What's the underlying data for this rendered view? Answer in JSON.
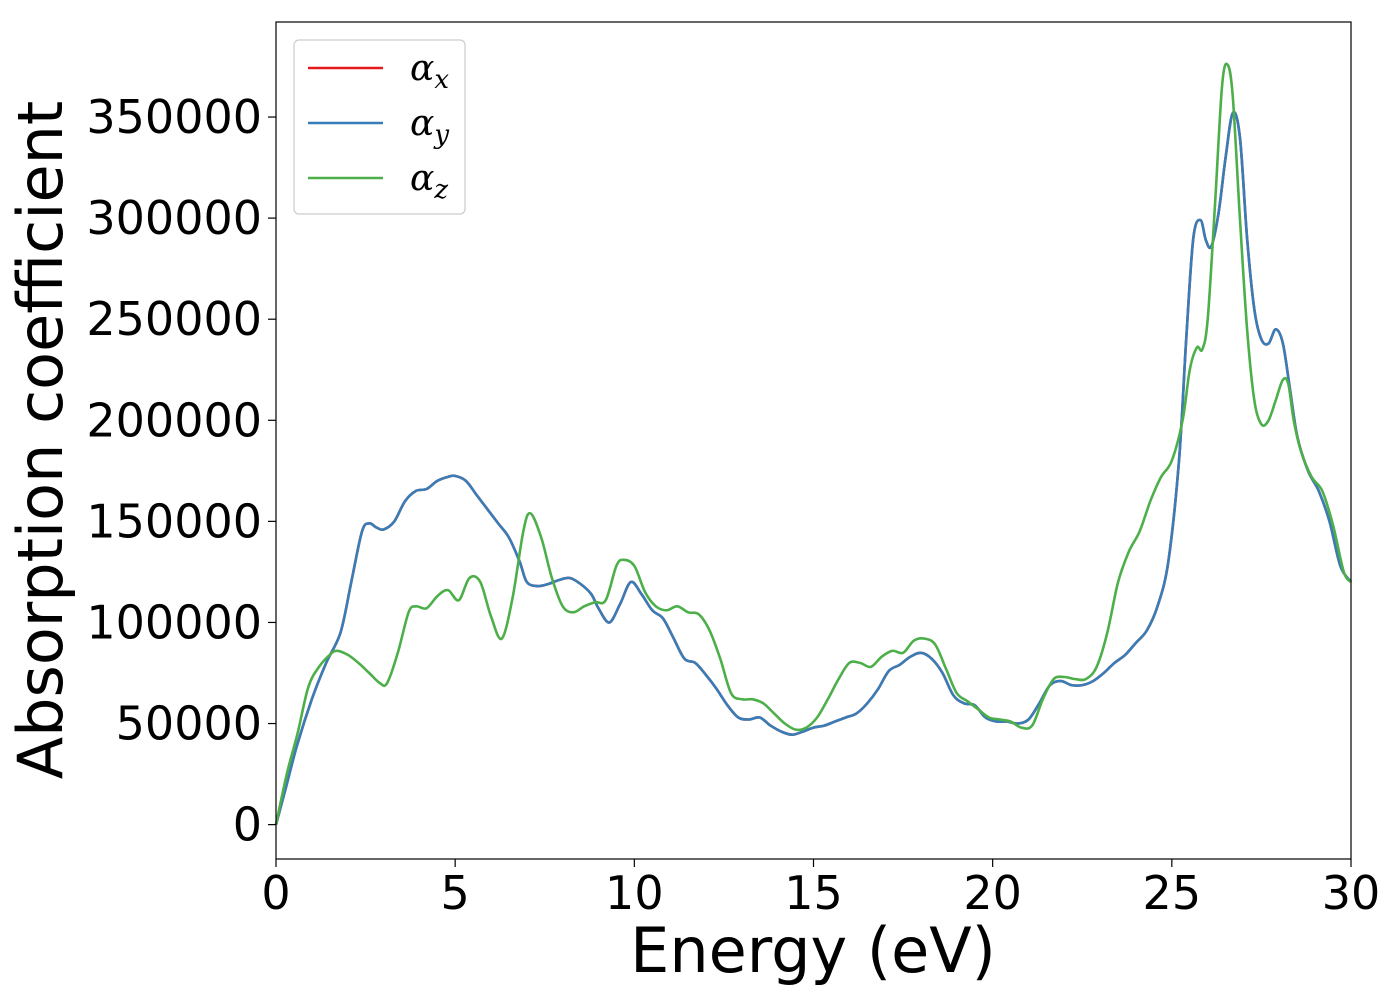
{
  "chart_data": {
    "type": "line",
    "title": "",
    "xlabel": "Energy (eV)",
    "ylabel": "Absorption coefficient",
    "xlim": [
      0,
      30
    ],
    "ylim": [
      -17000,
      397000
    ],
    "xticks": [
      0,
      5,
      10,
      15,
      20,
      25,
      30
    ],
    "yticks": [
      0,
      50000,
      100000,
      150000,
      200000,
      250000,
      300000,
      350000
    ],
    "grid": false,
    "legend_position": "top-left",
    "series": [
      {
        "name": "αx",
        "base": "α",
        "sub": "x",
        "color": "#e41a1c",
        "x": [
          0,
          0.3,
          0.6,
          1.0,
          1.4,
          1.8,
          2.1,
          2.4,
          2.6,
          2.8,
          3.0,
          3.3,
          3.6,
          3.9,
          4.2,
          4.5,
          4.8,
          5.0,
          5.3,
          5.6,
          5.9,
          6.2,
          6.5,
          6.8,
          7.0,
          7.3,
          7.6,
          7.9,
          8.2,
          8.5,
          8.8,
          9.0,
          9.3,
          9.6,
          9.9,
          10.2,
          10.5,
          10.8,
          11.1,
          11.4,
          11.7,
          12.0,
          12.3,
          12.6,
          12.9,
          13.2,
          13.5,
          13.8,
          14.1,
          14.4,
          14.7,
          15.0,
          15.3,
          15.6,
          15.9,
          16.2,
          16.5,
          16.8,
          17.1,
          17.4,
          17.7,
          18.0,
          18.3,
          18.6,
          18.9,
          19.2,
          19.5,
          19.8,
          20.1,
          20.4,
          20.7,
          21.0,
          21.3,
          21.6,
          21.9,
          22.2,
          22.5,
          22.8,
          23.1,
          23.4,
          23.7,
          24.0,
          24.3,
          24.6,
          24.9,
          25.2,
          25.4,
          25.6,
          25.8,
          25.95,
          26.1,
          26.3,
          26.5,
          26.7,
          26.9,
          27.1,
          27.3,
          27.5,
          27.7,
          27.9,
          28.1,
          28.3,
          28.5,
          28.8,
          29.1,
          29.4,
          29.7,
          30.0
        ],
        "y": [
          0,
          20000,
          40000,
          62000,
          80000,
          95000,
          120000,
          145000,
          149000,
          147000,
          146000,
          150000,
          160000,
          165000,
          166000,
          170000,
          172000,
          172500,
          170000,
          163000,
          156000,
          149000,
          142000,
          130000,
          120000,
          118000,
          119000,
          121000,
          122000,
          119000,
          114000,
          107000,
          100000,
          109000,
          120000,
          114000,
          106000,
          102000,
          92000,
          82000,
          80000,
          74000,
          67000,
          59000,
          53000,
          52000,
          53000,
          49000,
          46000,
          44500,
          46000,
          48000,
          49000,
          51000,
          53000,
          55000,
          60000,
          67000,
          76000,
          79000,
          83000,
          85000,
          82000,
          75000,
          64000,
          60000,
          59000,
          53000,
          51000,
          51000,
          50000,
          52000,
          60000,
          69000,
          71000,
          69000,
          69000,
          71000,
          75000,
          80000,
          84000,
          90000,
          96000,
          108000,
          130000,
          180000,
          240000,
          290000,
          299000,
          289000,
          286000,
          302000,
          330000,
          352000,
          340000,
          290000,
          255000,
          240000,
          238000,
          245000,
          238000,
          215000,
          192000,
          175000,
          165000,
          150000,
          128000,
          120000
        ]
      },
      {
        "name": "αy",
        "base": "α",
        "sub": "y",
        "color": "#377eb8",
        "x": [
          0,
          0.3,
          0.6,
          1.0,
          1.4,
          1.8,
          2.1,
          2.4,
          2.6,
          2.8,
          3.0,
          3.3,
          3.6,
          3.9,
          4.2,
          4.5,
          4.8,
          5.0,
          5.3,
          5.6,
          5.9,
          6.2,
          6.5,
          6.8,
          7.0,
          7.3,
          7.6,
          7.9,
          8.2,
          8.5,
          8.8,
          9.0,
          9.3,
          9.6,
          9.9,
          10.2,
          10.5,
          10.8,
          11.1,
          11.4,
          11.7,
          12.0,
          12.3,
          12.6,
          12.9,
          13.2,
          13.5,
          13.8,
          14.1,
          14.4,
          14.7,
          15.0,
          15.3,
          15.6,
          15.9,
          16.2,
          16.5,
          16.8,
          17.1,
          17.4,
          17.7,
          18.0,
          18.3,
          18.6,
          18.9,
          19.2,
          19.5,
          19.8,
          20.1,
          20.4,
          20.7,
          21.0,
          21.3,
          21.6,
          21.9,
          22.2,
          22.5,
          22.8,
          23.1,
          23.4,
          23.7,
          24.0,
          24.3,
          24.6,
          24.9,
          25.2,
          25.4,
          25.6,
          25.8,
          25.95,
          26.1,
          26.3,
          26.5,
          26.7,
          26.9,
          27.1,
          27.3,
          27.5,
          27.7,
          27.9,
          28.1,
          28.3,
          28.5,
          28.8,
          29.1,
          29.4,
          29.7,
          30.0
        ],
        "y": [
          0,
          20000,
          40000,
          62000,
          80000,
          95000,
          120000,
          145000,
          149000,
          147000,
          146000,
          150000,
          160000,
          165000,
          166000,
          170000,
          172000,
          172500,
          170000,
          163000,
          156000,
          149000,
          142000,
          130000,
          120000,
          118000,
          119000,
          121000,
          122000,
          119000,
          114000,
          107000,
          100000,
          109000,
          120000,
          114000,
          106000,
          102000,
          92000,
          82000,
          80000,
          74000,
          67000,
          59000,
          53000,
          52000,
          53000,
          49000,
          46000,
          44500,
          46000,
          48000,
          49000,
          51000,
          53000,
          55000,
          60000,
          67000,
          76000,
          79000,
          83000,
          85000,
          82000,
          75000,
          64000,
          60000,
          59000,
          53000,
          51000,
          51000,
          50000,
          52000,
          60000,
          69000,
          71000,
          69000,
          69000,
          71000,
          75000,
          80000,
          84000,
          90000,
          96000,
          108000,
          130000,
          180000,
          240000,
          290000,
          299000,
          289000,
          286000,
          302000,
          330000,
          352000,
          340000,
          290000,
          255000,
          240000,
          238000,
          245000,
          238000,
          215000,
          192000,
          175000,
          165000,
          150000,
          128000,
          120000
        ]
      },
      {
        "name": "αz",
        "base": "α",
        "sub": "z",
        "color": "#4daf4a",
        "x": [
          0,
          0.3,
          0.6,
          0.9,
          1.2,
          1.5,
          1.7,
          2.0,
          2.3,
          2.6,
          2.9,
          3.1,
          3.4,
          3.7,
          3.9,
          4.2,
          4.5,
          4.8,
          5.1,
          5.4,
          5.7,
          6.0,
          6.3,
          6.6,
          6.9,
          7.1,
          7.4,
          7.7,
          8.0,
          8.3,
          8.6,
          8.9,
          9.2,
          9.5,
          9.7,
          10.0,
          10.3,
          10.6,
          10.9,
          11.2,
          11.5,
          11.8,
          12.1,
          12.4,
          12.7,
          13.0,
          13.3,
          13.6,
          13.9,
          14.2,
          14.5,
          14.8,
          15.1,
          15.4,
          15.7,
          16.0,
          16.3,
          16.6,
          16.9,
          17.2,
          17.5,
          17.8,
          18.1,
          18.4,
          18.7,
          19.0,
          19.3,
          19.6,
          19.9,
          20.2,
          20.5,
          20.8,
          21.1,
          21.4,
          21.7,
          22.0,
          22.3,
          22.6,
          22.9,
          23.2,
          23.5,
          23.8,
          24.1,
          24.4,
          24.7,
          25.0,
          25.3,
          25.5,
          25.7,
          25.85,
          26.0,
          26.2,
          26.4,
          26.55,
          26.7,
          26.9,
          27.1,
          27.3,
          27.5,
          27.7,
          27.9,
          28.1,
          28.25,
          28.4,
          28.6,
          28.9,
          29.2,
          29.5,
          29.8,
          30.0
        ],
        "y": [
          0,
          25000,
          45000,
          68000,
          78000,
          84000,
          86000,
          84000,
          80000,
          75000,
          70000,
          70000,
          85000,
          105000,
          108000,
          107000,
          113000,
          116000,
          111000,
          122000,
          120000,
          103000,
          92000,
          112000,
          145000,
          154000,
          142000,
          122000,
          108000,
          105000,
          108000,
          110000,
          111000,
          128000,
          131000,
          128000,
          115000,
          108000,
          106000,
          108000,
          105000,
          104000,
          96000,
          82000,
          65000,
          62000,
          62000,
          60000,
          55000,
          50000,
          47000,
          48000,
          53000,
          62000,
          72000,
          80000,
          80000,
          78000,
          83000,
          86000,
          85000,
          91000,
          92000,
          89000,
          77000,
          65000,
          61000,
          57000,
          53000,
          52000,
          51000,
          48000,
          49000,
          62000,
          72000,
          73000,
          72000,
          72000,
          78000,
          95000,
          120000,
          135000,
          145000,
          160000,
          172000,
          180000,
          200000,
          225000,
          236000,
          235000,
          250000,
          305000,
          365000,
          376000,
          360000,
          300000,
          245000,
          210000,
          198000,
          200000,
          210000,
          220000,
          218000,
          200000,
          185000,
          172000,
          165000,
          148000,
          125000,
          120000
        ]
      }
    ]
  }
}
